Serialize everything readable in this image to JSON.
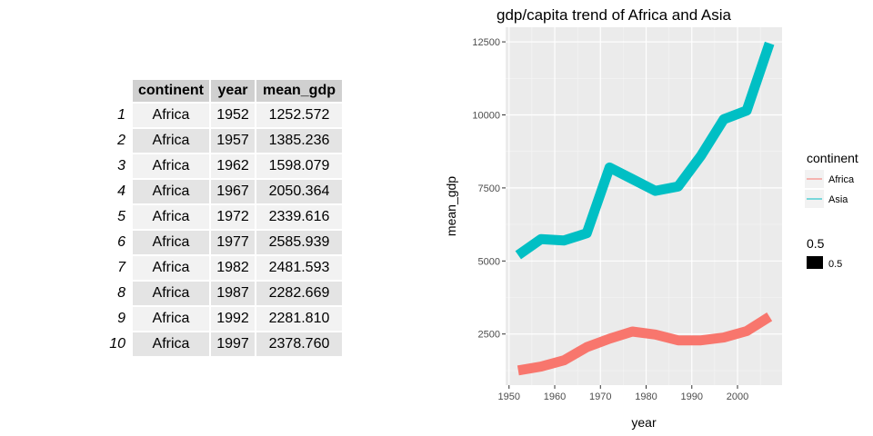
{
  "table": {
    "headers": [
      "continent",
      "year",
      "mean_gdp"
    ],
    "rows": [
      {
        "n": "1",
        "continent": "Africa",
        "year": "1952",
        "mean_gdp": "1252.572"
      },
      {
        "n": "2",
        "continent": "Africa",
        "year": "1957",
        "mean_gdp": "1385.236"
      },
      {
        "n": "3",
        "continent": "Africa",
        "year": "1962",
        "mean_gdp": "1598.079"
      },
      {
        "n": "4",
        "continent": "Africa",
        "year": "1967",
        "mean_gdp": "2050.364"
      },
      {
        "n": "5",
        "continent": "Africa",
        "year": "1972",
        "mean_gdp": "2339.616"
      },
      {
        "n": "6",
        "continent": "Africa",
        "year": "1977",
        "mean_gdp": "2585.939"
      },
      {
        "n": "7",
        "continent": "Africa",
        "year": "1982",
        "mean_gdp": "2481.593"
      },
      {
        "n": "8",
        "continent": "Africa",
        "year": "1987",
        "mean_gdp": "2282.669"
      },
      {
        "n": "9",
        "continent": "Africa",
        "year": "1992",
        "mean_gdp": "2281.810"
      },
      {
        "n": "10",
        "continent": "Africa",
        "year": "1997",
        "mean_gdp": "2378.760"
      }
    ]
  },
  "chart_data": {
    "type": "line",
    "title": "gdp/capita trend of Africa and Asia",
    "xlabel": "year",
    "ylabel": "mean_gdp",
    "xlim": [
      1949.25,
      2009.75
    ],
    "ylim": [
      750,
      13000
    ],
    "x_ticks": [
      1950,
      1960,
      1970,
      1980,
      1990,
      2000
    ],
    "y_ticks": [
      2500,
      5000,
      7500,
      10000,
      12500
    ],
    "grid": true,
    "x": [
      1952,
      1957,
      1962,
      1967,
      1972,
      1977,
      1982,
      1987,
      1992,
      1997,
      2002,
      2007
    ],
    "series": [
      {
        "name": "Africa",
        "color": "#F8766D",
        "values": [
          1252.6,
          1385.2,
          1598.1,
          2050.4,
          2339.6,
          2585.9,
          2481.6,
          2282.7,
          2281.8,
          2378.8,
          2600,
          3090
        ]
      },
      {
        "name": "Asia",
        "color": "#00BFC4",
        "values": [
          5200,
          5750,
          5700,
          5950,
          8200,
          7800,
          7400,
          7550,
          8600,
          9850,
          10150,
          12450
        ]
      }
    ],
    "legend": {
      "position": "right",
      "title": "continent",
      "size_title": "0.5",
      "size_label": "0.5"
    }
  }
}
